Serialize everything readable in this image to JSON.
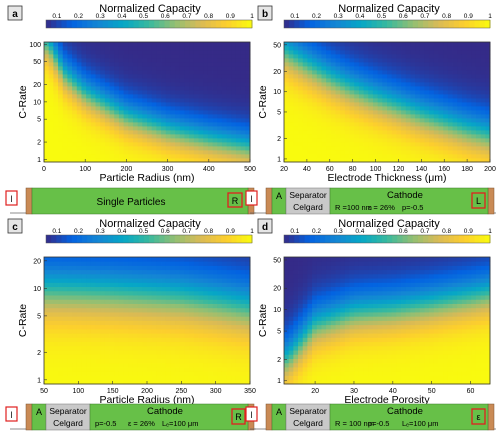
{
  "colorbar": {
    "title": "Normalized Capacity",
    "ticks": [
      "0.1",
      "0.2",
      "0.3",
      "0.4",
      "0.5",
      "0.6",
      "0.7",
      "0.8",
      "0.9",
      "1"
    ],
    "colormap": [
      "#352a87",
      "#0363e1",
      "#1485d4",
      "#06a7c6",
      "#38b99e",
      "#92bf73",
      "#d9ba56",
      "#fcce2e",
      "#f9fb0e"
    ]
  },
  "colors": {
    "cell_green": "#67c048",
    "current_collector": "#c98a55",
    "separator_gray": "#c9c9c9",
    "highlight_red": "#e0201f"
  },
  "chart_data": [
    {
      "type": "heatmap",
      "panel": "a",
      "xlabel": "Particle Radius (nm)",
      "ylabel": "C-Rate",
      "xlim": [
        0,
        500
      ],
      "ylim": [
        0.9,
        110
      ],
      "y_scale": "log",
      "x_ticks": [
        "0",
        "100",
        "200",
        "300",
        "400",
        "500"
      ],
      "y_ticks": [
        "1",
        "2",
        "5",
        "10",
        "20",
        "50",
        "100"
      ],
      "z_range": [
        0.1,
        1
      ],
      "boundary_rate_at_half_capacity": {
        "x": [
          10,
          50,
          100,
          200,
          300,
          400,
          500
        ],
        "y": [
          100,
          30,
          14,
          5.5,
          3.2,
          2.2,
          1.6
        ]
      },
      "cell": {
        "items": [
          {
            "kind": "current",
            "label": "I"
          },
          {
            "kind": "green-wide",
            "label": "Single Particles",
            "box": "R"
          }
        ]
      }
    },
    {
      "type": "heatmap",
      "panel": "b",
      "xlabel": "Electrode Thickness (μm)",
      "ylabel": "C-Rate",
      "xlim": [
        20,
        200
      ],
      "ylim": [
        0.9,
        55
      ],
      "y_scale": "log",
      "x_ticks": [
        "20",
        "40",
        "60",
        "80",
        "100",
        "120",
        "140",
        "160",
        "180",
        "200"
      ],
      "y_ticks": [
        "1",
        "2",
        "5",
        "10",
        "20",
        "50"
      ],
      "z_range": [
        0.1,
        1
      ],
      "boundary_rate_at_half_capacity": {
        "x": [
          20,
          40,
          60,
          80,
          100,
          120,
          140,
          160,
          180,
          200
        ],
        "y": [
          40,
          25,
          16,
          11,
          8,
          6,
          4.5,
          3.5,
          2.7,
          2.2
        ]
      },
      "cell": {
        "items": [
          {
            "kind": "current",
            "label": "I"
          },
          {
            "kind": "anode",
            "label": "A"
          },
          {
            "kind": "separator",
            "top": "Separator",
            "bottom": "Celgard"
          },
          {
            "kind": "cathode",
            "title": "Cathode",
            "line": [
              "R =100 nm",
              "ε = 26%",
              "p=-0.5"
            ],
            "box": "L"
          }
        ]
      }
    },
    {
      "type": "heatmap",
      "panel": "c",
      "xlabel": "Particle Radius (nm)",
      "ylabel": "C-Rate",
      "xlim": [
        50,
        350
      ],
      "ylim": [
        0.9,
        22
      ],
      "y_scale": "log",
      "x_ticks": [
        "50",
        "100",
        "150",
        "200",
        "250",
        "300",
        "350"
      ],
      "y_ticks": [
        "1",
        "2",
        "5",
        "10",
        "20"
      ],
      "z_range": [
        0.1,
        1
      ],
      "boundary_rate_at_half_capacity": {
        "x": [
          50,
          100,
          150,
          200,
          250,
          300,
          350
        ],
        "y": [
          9.5,
          9.3,
          9,
          8.5,
          8,
          7,
          6
        ]
      },
      "cell": {
        "items": [
          {
            "kind": "current",
            "label": "I"
          },
          {
            "kind": "anode",
            "label": "A"
          },
          {
            "kind": "separator",
            "top": "Separator",
            "bottom": "Celgard"
          },
          {
            "kind": "cathode",
            "title": "Cathode",
            "line": [
              "p=-0.5",
              "ε = 26%",
              "Lₑ=100 μm"
            ],
            "box": "R"
          }
        ]
      }
    },
    {
      "type": "heatmap",
      "panel": "d",
      "xlabel": "Electrode Porosity",
      "ylabel": "C-Rate",
      "xlim": [
        12,
        65
      ],
      "ylim": [
        0.9,
        55
      ],
      "y_scale": "log",
      "x_ticks": [
        "20",
        "30",
        "40",
        "50",
        "60"
      ],
      "y_ticks": [
        "1",
        "2",
        "5",
        "10",
        "20",
        "50"
      ],
      "z_range": [
        0.1,
        1
      ],
      "boundary_rate_at_half_capacity": {
        "x": [
          13,
          20,
          30,
          40,
          50,
          60,
          65
        ],
        "y": [
          2,
          6,
          9,
          10,
          12,
          15,
          17
        ]
      },
      "cell": {
        "items": [
          {
            "kind": "current",
            "label": "I"
          },
          {
            "kind": "anode",
            "label": "A"
          },
          {
            "kind": "separator",
            "top": "Separator",
            "bottom": "Celgard"
          },
          {
            "kind": "cathode",
            "title": "Cathode",
            "line": [
              "R = 100 nm",
              "p=-0.5",
              "Lₑ=100 μm"
            ],
            "box": "ε"
          }
        ]
      }
    }
  ]
}
